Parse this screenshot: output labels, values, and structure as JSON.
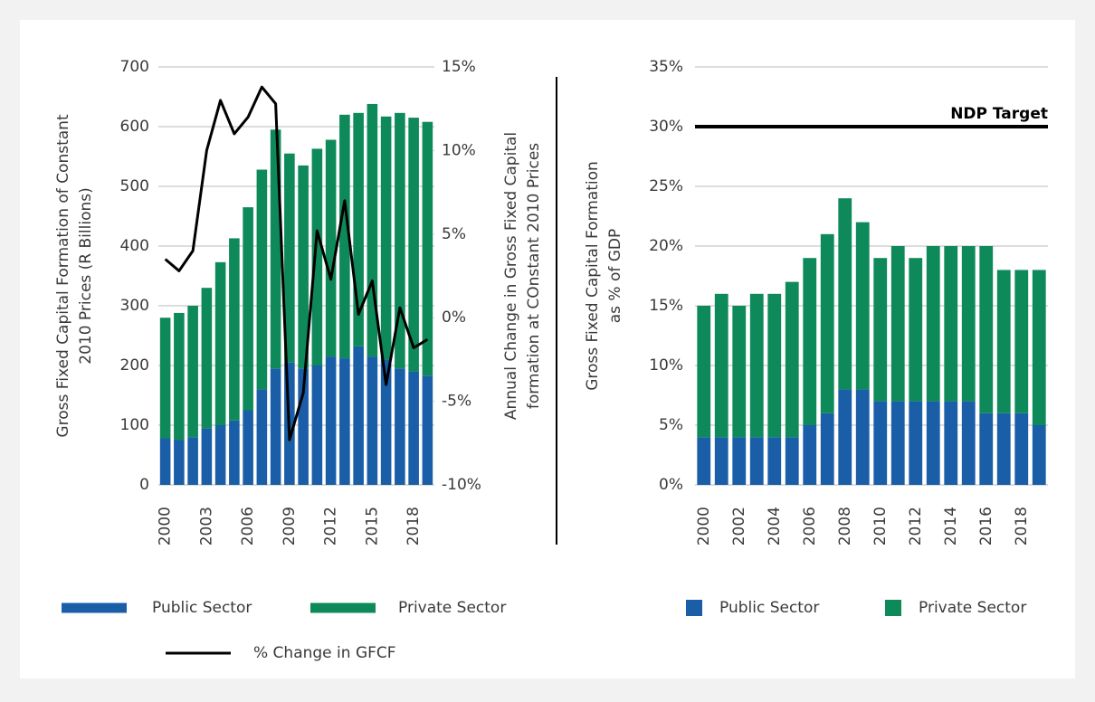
{
  "chart_data": [
    {
      "type": "bar",
      "stacked": true,
      "ylabel": [
        "Gross Fixed Capital Formation of Constant",
        "2010 Prices (R Billions)"
      ],
      "y2label": [
        "Annual Change in Gross Fixed Capital",
        "formation at COnstant 2010 Prices"
      ],
      "categories": [
        "2000",
        null,
        null,
        "2003",
        null,
        null,
        "2006",
        null,
        null,
        "2009",
        null,
        null,
        "2012",
        null,
        null,
        "2015",
        null,
        null,
        "2018",
        null
      ],
      "series": [
        {
          "name": "Public Sector",
          "color": "#1a5ea8",
          "values": [
            78,
            75,
            80,
            95,
            100,
            108,
            125,
            160,
            195,
            205,
            195,
            200,
            215,
            212,
            232,
            215,
            210,
            195,
            190,
            183
          ]
        },
        {
          "name": "Private Sector",
          "color": "#0e8a5a",
          "values": [
            202,
            213,
            220,
            235,
            273,
            305,
            340,
            368,
            400,
            350,
            340,
            363,
            363,
            408,
            391,
            423,
            407,
            428,
            425,
            425
          ]
        },
        {
          "name": "% Change in GFCF",
          "type": "line",
          "axis": "y2",
          "color": "#000000",
          "values": [
            3.5,
            2.8,
            4,
            10,
            13,
            11,
            12,
            13.8,
            12.8,
            -7.3,
            -4.5,
            5.2,
            2.3,
            7,
            0.2,
            2.2,
            -4,
            0.6,
            -1.8,
            -1.3
          ]
        }
      ],
      "ylim": [
        0,
        700
      ],
      "yticks": [
        0,
        100,
        200,
        300,
        400,
        500,
        600,
        700
      ],
      "y2lim": [
        -10,
        15
      ],
      "y2ticks": [
        {
          "value": -10,
          "label": "-10%"
        },
        {
          "value": -5,
          "label": "-5%"
        },
        {
          "value": 0,
          "label": "0%"
        },
        {
          "value": 5,
          "label": "5%"
        },
        {
          "value": 10,
          "label": "10%"
        },
        {
          "value": 15,
          "label": "15%"
        }
      ],
      "grid": true
    },
    {
      "type": "bar",
      "stacked": true,
      "ylabel": [
        "Gross Fixed Capital Formation",
        "as % of GDP"
      ],
      "categories": [
        "2000",
        null,
        "2002",
        null,
        "2004",
        null,
        "2006",
        null,
        "2008",
        null,
        "2010",
        null,
        "2012",
        null,
        "2014",
        null,
        "2016",
        null,
        "2018",
        null
      ],
      "series": [
        {
          "name": "Public Sector",
          "color": "#1a5ea8",
          "values": [
            4,
            4,
            4,
            4,
            4,
            4,
            5,
            6,
            8,
            8,
            7,
            7,
            7,
            7,
            7,
            7,
            6,
            6,
            6,
            5
          ]
        },
        {
          "name": "Private Sector",
          "color": "#0e8a5a",
          "values": [
            11,
            12,
            11,
            12,
            12,
            13,
            14,
            15,
            16,
            14,
            12,
            13,
            12,
            13,
            13,
            13,
            14,
            12,
            12,
            13
          ]
        }
      ],
      "ylim": [
        0,
        35
      ],
      "yticks": [
        {
          "value": 0,
          "label": "0%"
        },
        {
          "value": 5,
          "label": "5%"
        },
        {
          "value": 10,
          "label": "10%"
        },
        {
          "value": 15,
          "label": "15%"
        },
        {
          "value": 20,
          "label": "20%"
        },
        {
          "value": 25,
          "label": "25%"
        },
        {
          "value": 30,
          "label": "30%"
        },
        {
          "value": 35,
          "label": "35%"
        }
      ],
      "annotations": [
        {
          "label": "NDP Target",
          "value": 30
        }
      ],
      "grid": true
    }
  ]
}
